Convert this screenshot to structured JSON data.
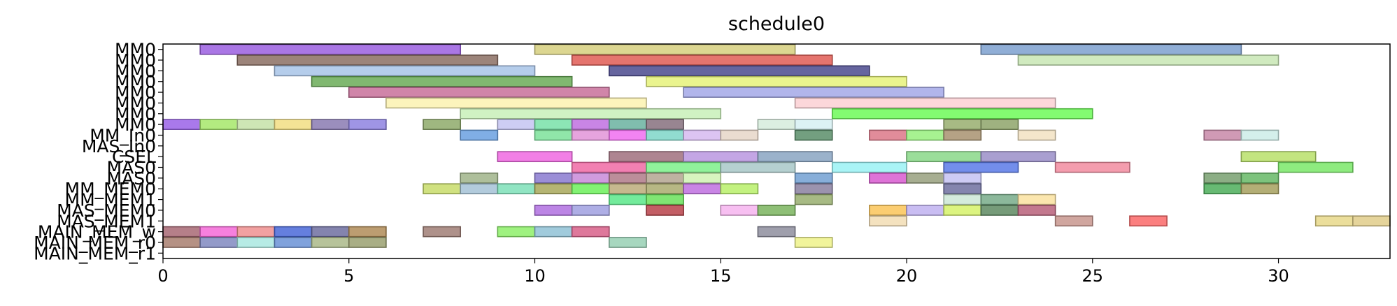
{
  "chart_data": {
    "type": "gantt",
    "title": "schedule0",
    "xlabel": "",
    "ylabel": "",
    "xlim": [
      0,
      33
    ],
    "x_ticks": [
      0,
      5,
      10,
      15,
      20,
      25,
      30
    ],
    "grid": false,
    "rows": [
      "MM0",
      "MM0",
      "MM0",
      "MM0",
      "MM0",
      "MM0",
      "MM0",
      "MM0",
      "MM_In0",
      "MAS_In0",
      "CSEL",
      "MAS0",
      "MAS0",
      "MM_MEM0",
      "MM_MEM1",
      "MAS_MEM0",
      "MAS_MEM1",
      "MAIN_MEM_w",
      "MAIN_MEM_r0",
      "MAIN_MEM_r1"
    ],
    "tasks": [
      {
        "row": 0,
        "start": 1,
        "end": 8,
        "color": "#9b5fe0"
      },
      {
        "row": 0,
        "start": 10,
        "end": 17,
        "color": "#d6cf7e"
      },
      {
        "row": 0,
        "start": 22,
        "end": 29,
        "color": "#7da0cf"
      },
      {
        "row": 1,
        "start": 2,
        "end": 9,
        "color": "#8b6e63"
      },
      {
        "row": 1,
        "start": 11,
        "end": 18,
        "color": "#e05c55"
      },
      {
        "row": 1,
        "start": 23,
        "end": 30,
        "color": "#c8e6b4"
      },
      {
        "row": 2,
        "start": 3,
        "end": 10,
        "color": "#a8c4e8"
      },
      {
        "row": 2,
        "start": 12,
        "end": 19,
        "color": "#4b4a8e"
      },
      {
        "row": 3,
        "start": 4,
        "end": 11,
        "color": "#6aac57"
      },
      {
        "row": 3,
        "start": 13,
        "end": 20,
        "color": "#e6f27a"
      },
      {
        "row": 4,
        "start": 5,
        "end": 12,
        "color": "#c8709a"
      },
      {
        "row": 4,
        "start": 14,
        "end": 21,
        "color": "#a3a8e8"
      },
      {
        "row": 5,
        "start": 6,
        "end": 13,
        "color": "#fbf2b0"
      },
      {
        "row": 5,
        "start": 17,
        "end": 24,
        "color": "#fcd0d4"
      },
      {
        "row": 6,
        "start": 8,
        "end": 15,
        "color": "#c8f0b8"
      },
      {
        "row": 6,
        "start": 18,
        "end": 25,
        "color": "#6dfa58"
      },
      {
        "row": 7,
        "start": 0,
        "end": 1,
        "color": "#9a62e8"
      },
      {
        "row": 7,
        "start": 1,
        "end": 2,
        "color": "#a6e86a"
      },
      {
        "row": 7,
        "start": 2,
        "end": 3,
        "color": "#c6e2a8"
      },
      {
        "row": 7,
        "start": 3,
        "end": 4,
        "color": "#f2de82"
      },
      {
        "row": 7,
        "start": 4,
        "end": 5,
        "color": "#8a7ab2"
      },
      {
        "row": 7,
        "start": 5,
        "end": 6,
        "color": "#8e82e0"
      },
      {
        "row": 7,
        "start": 7,
        "end": 8,
        "color": "#8eaa6a"
      },
      {
        "row": 7,
        "start": 9,
        "end": 10,
        "color": "#c4c4f2"
      },
      {
        "row": 7,
        "start": 10,
        "end": 11,
        "color": "#78e2a8"
      },
      {
        "row": 7,
        "start": 11,
        "end": 12,
        "color": "#c070e0"
      },
      {
        "row": 7,
        "start": 12,
        "end": 13,
        "color": "#6ab2a0"
      },
      {
        "row": 7,
        "start": 13,
        "end": 14,
        "color": "#86707e"
      },
      {
        "row": 7,
        "start": 16,
        "end": 17,
        "color": "#d6ecdc"
      },
      {
        "row": 7,
        "start": 17,
        "end": 18,
        "color": "#d6f0f2"
      },
      {
        "row": 7,
        "start": 21,
        "end": 22,
        "color": "#98ae6e"
      },
      {
        "row": 7,
        "start": 22,
        "end": 23,
        "color": "#8ea46a"
      },
      {
        "row": 8,
        "start": 8,
        "end": 9,
        "color": "#6aa0e0"
      },
      {
        "row": 8,
        "start": 10,
        "end": 11,
        "color": "#7ce29a"
      },
      {
        "row": 8,
        "start": 11,
        "end": 12,
        "color": "#e294d8"
      },
      {
        "row": 8,
        "start": 12,
        "end": 13,
        "color": "#f06ef0"
      },
      {
        "row": 8,
        "start": 13,
        "end": 14,
        "color": "#7ed6c8"
      },
      {
        "row": 8,
        "start": 14,
        "end": 15,
        "color": "#d6baf0"
      },
      {
        "row": 8,
        "start": 15,
        "end": 16,
        "color": "#e6d6c8"
      },
      {
        "row": 8,
        "start": 17,
        "end": 18,
        "color": "#5a8e6a"
      },
      {
        "row": 8,
        "start": 19,
        "end": 20,
        "color": "#dc7888"
      },
      {
        "row": 8,
        "start": 20,
        "end": 21,
        "color": "#98f07e"
      },
      {
        "row": 8,
        "start": 21,
        "end": 22,
        "color": "#a89270"
      },
      {
        "row": 8,
        "start": 23,
        "end": 24,
        "color": "#f2e2c2"
      },
      {
        "row": 8,
        "start": 28,
        "end": 29,
        "color": "#c888a8"
      },
      {
        "row": 8,
        "start": 29,
        "end": 30,
        "color": "#ccece8"
      },
      {
        "row": 10,
        "start": 9,
        "end": 11,
        "color": "#f068e2"
      },
      {
        "row": 10,
        "start": 12,
        "end": 14,
        "color": "#a0707e"
      },
      {
        "row": 10,
        "start": 14,
        "end": 16,
        "color": "#ba96e0"
      },
      {
        "row": 10,
        "start": 16,
        "end": 18,
        "color": "#8aa4c2"
      },
      {
        "row": 10,
        "start": 20,
        "end": 22,
        "color": "#8ad888"
      },
      {
        "row": 10,
        "start": 22,
        "end": 24,
        "color": "#9a8ec8"
      },
      {
        "row": 10,
        "start": 29,
        "end": 31,
        "color": "#b8e06a"
      },
      {
        "row": 11,
        "start": 11,
        "end": 13,
        "color": "#f06aa4"
      },
      {
        "row": 11,
        "start": 13,
        "end": 15,
        "color": "#7cf08a"
      },
      {
        "row": 11,
        "start": 15,
        "end": 17,
        "color": "#a8c8c8"
      },
      {
        "row": 11,
        "start": 18,
        "end": 20,
        "color": "#9af2f4"
      },
      {
        "row": 11,
        "start": 21,
        "end": 23,
        "color": "#5a7ae8"
      },
      {
        "row": 11,
        "start": 24,
        "end": 26,
        "color": "#f28ca0"
      },
      {
        "row": 11,
        "start": 30,
        "end": 32,
        "color": "#7ae868"
      },
      {
        "row": 12,
        "start": 8,
        "end": 9,
        "color": "#a0b48a"
      },
      {
        "row": 12,
        "start": 10,
        "end": 11,
        "color": "#8a7ad0"
      },
      {
        "row": 12,
        "start": 11,
        "end": 12,
        "color": "#c88ad8"
      },
      {
        "row": 12,
        "start": 12,
        "end": 13,
        "color": "#b07a88"
      },
      {
        "row": 12,
        "start": 13,
        "end": 14,
        "color": "#b4a490"
      },
      {
        "row": 12,
        "start": 14,
        "end": 15,
        "color": "#d0f2b4"
      },
      {
        "row": 12,
        "start": 17,
        "end": 18,
        "color": "#72a0d2"
      },
      {
        "row": 12,
        "start": 19,
        "end": 20,
        "color": "#d85ad0"
      },
      {
        "row": 12,
        "start": 20,
        "end": 21,
        "color": "#98a07e"
      },
      {
        "row": 12,
        "start": 21,
        "end": 22,
        "color": "#c4c2f2"
      },
      {
        "row": 12,
        "start": 28,
        "end": 29,
        "color": "#78a070"
      },
      {
        "row": 12,
        "start": 29,
        "end": 30,
        "color": "#66b866"
      },
      {
        "row": 13,
        "start": 7,
        "end": 8,
        "color": "#c8dc6a"
      },
      {
        "row": 13,
        "start": 8,
        "end": 9,
        "color": "#a4c2d6"
      },
      {
        "row": 13,
        "start": 9,
        "end": 10,
        "color": "#7ee0b8"
      },
      {
        "row": 13,
        "start": 10,
        "end": 11,
        "color": "#a8a85a"
      },
      {
        "row": 13,
        "start": 11,
        "end": 12,
        "color": "#6cf05a"
      },
      {
        "row": 13,
        "start": 12,
        "end": 13,
        "color": "#bcac7a"
      },
      {
        "row": 13,
        "start": 13,
        "end": 14,
        "color": "#aaaa6e"
      },
      {
        "row": 13,
        "start": 14,
        "end": 15,
        "color": "#c070e0"
      },
      {
        "row": 13,
        "start": 15,
        "end": 16,
        "color": "#b8f06a"
      },
      {
        "row": 13,
        "start": 17,
        "end": 18,
        "color": "#8a80a0"
      },
      {
        "row": 13,
        "start": 21,
        "end": 22,
        "color": "#6e70a0"
      },
      {
        "row": 13,
        "start": 28,
        "end": 29,
        "color": "#4cae5a"
      },
      {
        "row": 13,
        "start": 29,
        "end": 30,
        "color": "#a6a05e"
      },
      {
        "row": 14,
        "start": 12,
        "end": 13,
        "color": "#5ae88a"
      },
      {
        "row": 14,
        "start": 13,
        "end": 14,
        "color": "#6ae05a"
      },
      {
        "row": 14,
        "start": 17,
        "end": 18,
        "color": "#98ae6e"
      },
      {
        "row": 14,
        "start": 21,
        "end": 22,
        "color": "#cce8d6"
      },
      {
        "row": 14,
        "start": 22,
        "end": 23,
        "color": "#78ac8a"
      },
      {
        "row": 14,
        "start": 23,
        "end": 24,
        "color": "#fae2a0"
      },
      {
        "row": 15,
        "start": 10,
        "end": 11,
        "color": "#b070e0"
      },
      {
        "row": 15,
        "start": 11,
        "end": 12,
        "color": "#a0a0e0"
      },
      {
        "row": 15,
        "start": 13,
        "end": 14,
        "color": "#b8424a"
      },
      {
        "row": 15,
        "start": 15,
        "end": 16,
        "color": "#f6b4ee"
      },
      {
        "row": 15,
        "start": 16,
        "end": 17,
        "color": "#7ab45e"
      },
      {
        "row": 15,
        "start": 19,
        "end": 20,
        "color": "#fac458"
      },
      {
        "row": 15,
        "start": 20,
        "end": 21,
        "color": "#c0b2f0"
      },
      {
        "row": 15,
        "start": 21,
        "end": 22,
        "color": "#d6f26a"
      },
      {
        "row": 15,
        "start": 22,
        "end": 23,
        "color": "#5e8a62"
      },
      {
        "row": 15,
        "start": 23,
        "end": 24,
        "color": "#b8607a"
      },
      {
        "row": 16,
        "start": 19,
        "end": 20,
        "color": "#f2ddb4"
      },
      {
        "row": 16,
        "start": 24,
        "end": 25,
        "color": "#c8968e"
      },
      {
        "row": 16,
        "start": 26,
        "end": 27,
        "color": "#fa6868"
      },
      {
        "row": 16,
        "start": 31,
        "end": 32,
        "color": "#e8d88a"
      },
      {
        "row": 16,
        "start": 32,
        "end": 33,
        "color": "#e0cc8a"
      },
      {
        "row": 17,
        "start": 0,
        "end": 1,
        "color": "#a86874"
      },
      {
        "row": 17,
        "start": 1,
        "end": 2,
        "color": "#f46ad8"
      },
      {
        "row": 17,
        "start": 2,
        "end": 3,
        "color": "#f09090"
      },
      {
        "row": 17,
        "start": 3,
        "end": 4,
        "color": "#4a68d8"
      },
      {
        "row": 17,
        "start": 4,
        "end": 5,
        "color": "#6e6ea0"
      },
      {
        "row": 17,
        "start": 5,
        "end": 6,
        "color": "#b08c58"
      },
      {
        "row": 17,
        "start": 7,
        "end": 8,
        "color": "#a07e76"
      },
      {
        "row": 17,
        "start": 9,
        "end": 10,
        "color": "#8ef06a"
      },
      {
        "row": 17,
        "start": 10,
        "end": 11,
        "color": "#90c2d6"
      },
      {
        "row": 17,
        "start": 11,
        "end": 12,
        "color": "#d8608a"
      },
      {
        "row": 17,
        "start": 16,
        "end": 17,
        "color": "#8e8e9e"
      },
      {
        "row": 18,
        "start": 0,
        "end": 1,
        "color": "#a87e6e"
      },
      {
        "row": 18,
        "start": 1,
        "end": 2,
        "color": "#8088c0"
      },
      {
        "row": 18,
        "start": 2,
        "end": 3,
        "color": "#aae8e0"
      },
      {
        "row": 18,
        "start": 3,
        "end": 4,
        "color": "#6a92d6"
      },
      {
        "row": 18,
        "start": 4,
        "end": 5,
        "color": "#aab888"
      },
      {
        "row": 18,
        "start": 5,
        "end": 6,
        "color": "#9aa070"
      },
      {
        "row": 18,
        "start": 12,
        "end": 13,
        "color": "#98d0b4"
      },
      {
        "row": 18,
        "start": 17,
        "end": 18,
        "color": "#eef28a"
      }
    ]
  }
}
